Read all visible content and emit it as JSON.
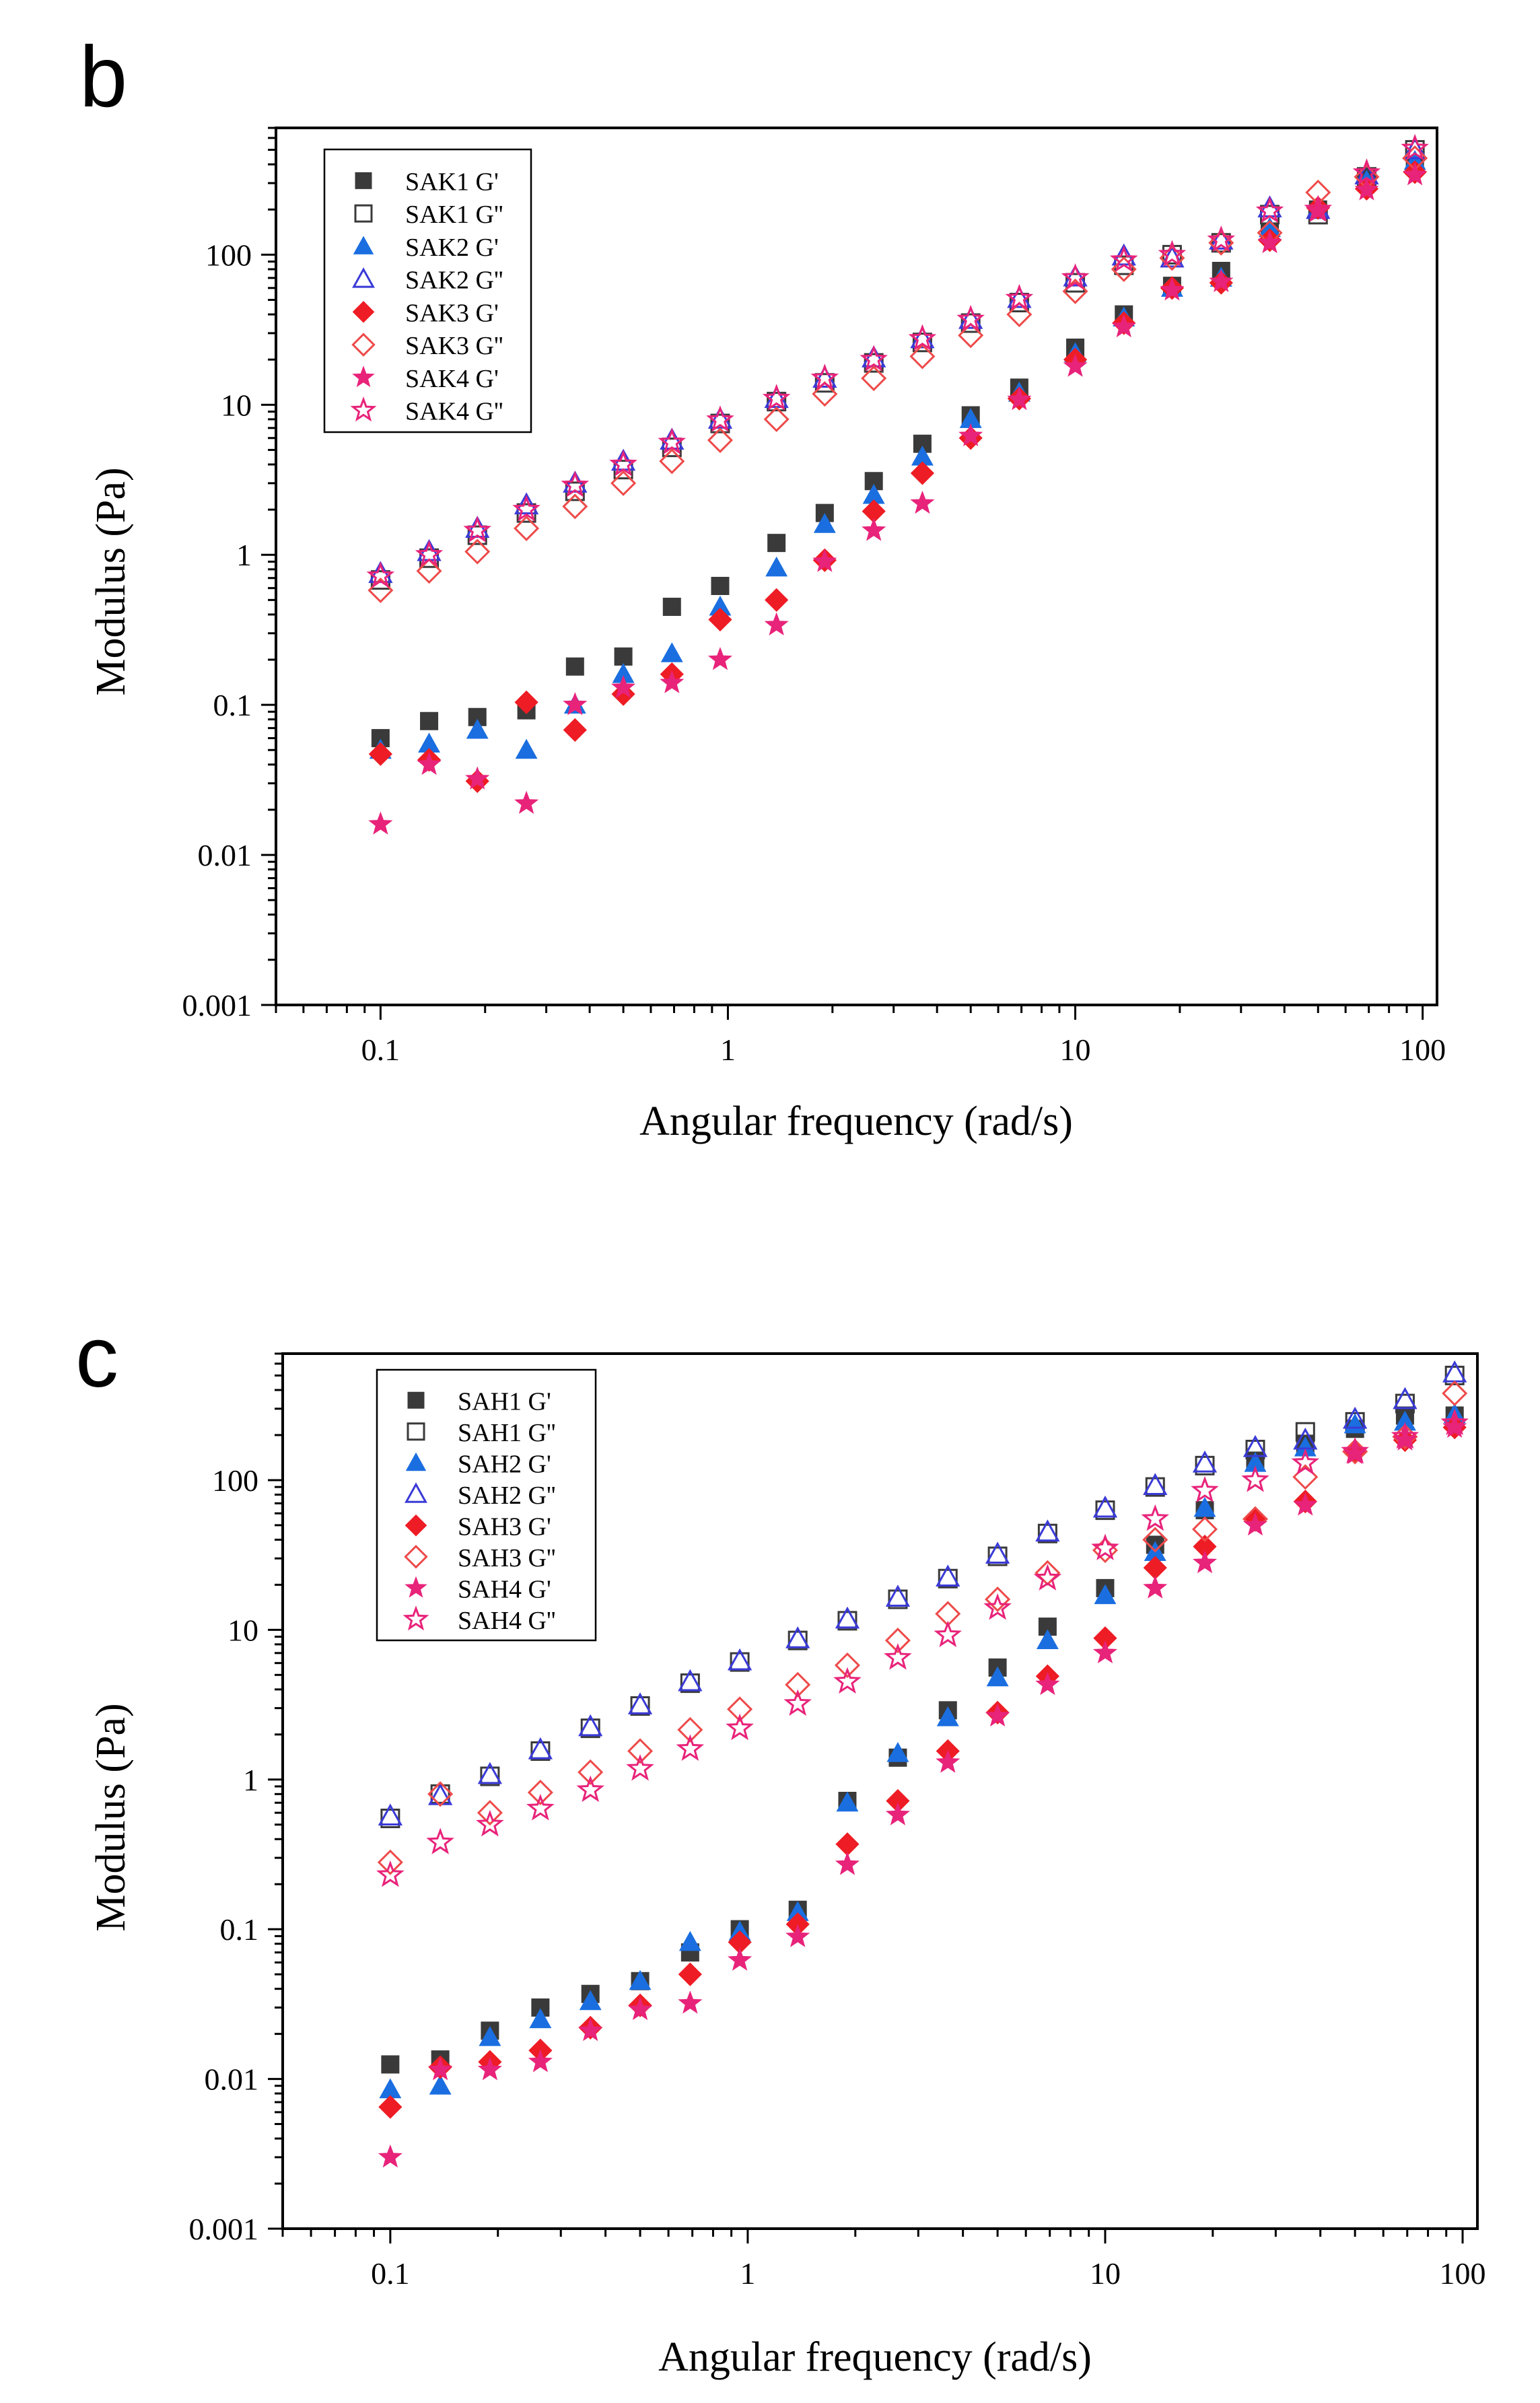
{
  "chart_data": [
    {
      "panel_label": "b",
      "type": "scatter",
      "xlabel": "Angular frequency (rad/s)",
      "ylabel": "Modulus (Pa)",
      "xscale": "log",
      "yscale": "log",
      "xlim": [
        0.05,
        110
      ],
      "ylim": [
        0.001,
        700
      ],
      "xticks": [
        0.1,
        1,
        10,
        100
      ],
      "xtick_labels": [
        "0.1",
        "1",
        "10",
        "100"
      ],
      "yticks": [
        0.001,
        0.01,
        0.1,
        1,
        10,
        100
      ],
      "ytick_labels": [
        "0.001",
        "0.01",
        "0.1",
        "1",
        "10",
        "100"
      ],
      "legend_position": "top-left",
      "x": [
        0.1,
        0.138,
        0.19,
        0.263,
        0.363,
        0.5,
        0.69,
        0.95,
        1.38,
        1.9,
        2.63,
        3.63,
        5,
        6.9,
        10,
        13.8,
        19,
        26.3,
        36.3,
        50,
        69,
        95
      ],
      "series": [
        {
          "name": "SAK1 G'",
          "marker": "square",
          "filled": true,
          "color": "#3a3a3a",
          "values": [
            0.06,
            0.078,
            0.083,
            0.092,
            0.18,
            0.21,
            0.45,
            0.62,
            1.2,
            1.9,
            3.1,
            5.5,
            8.5,
            13,
            24,
            40,
            62,
            78,
            140,
            200,
            330,
            390
          ]
        },
        {
          "name": "SAK1 G''",
          "marker": "square",
          "filled": false,
          "color": "#3a3a3a",
          "values": [
            0.68,
            0.95,
            1.35,
            1.9,
            2.65,
            3.7,
            5.2,
            7.5,
            10.5,
            14,
            19,
            26,
            35,
            48,
            65,
            85,
            100,
            120,
            185,
            185,
            330,
            500
          ]
        },
        {
          "name": "SAK2 G'",
          "marker": "triangle",
          "filled": true,
          "color": "#1a6ee0",
          "values": [
            0.05,
            0.055,
            0.068,
            0.05,
            0.1,
            0.16,
            0.22,
            0.45,
            0.82,
            1.6,
            2.5,
            4.5,
            8,
            12,
            22,
            38,
            60,
            70,
            150,
            205,
            310,
            420
          ]
        },
        {
          "name": "SAK2 G''",
          "marker": "triangle",
          "filled": false,
          "color": "#3a3ad8",
          "values": [
            0.75,
            1.05,
            1.5,
            2.15,
            3.0,
            4.2,
            5.8,
            8,
            11,
            15,
            20.5,
            27.5,
            37,
            51,
            71,
            98,
            95,
            125,
            205,
            200,
            340,
            500
          ]
        },
        {
          "name": "SAK3 G'",
          "marker": "diamond",
          "filled": true,
          "color": "#ee1c24",
          "values": [
            0.047,
            0.043,
            0.031,
            0.104,
            0.068,
            0.118,
            0.16,
            0.37,
            0.5,
            0.92,
            1.95,
            3.5,
            6,
            11,
            20,
            35,
            60,
            65,
            125,
            205,
            275,
            355
          ]
        },
        {
          "name": "SAK3 G''",
          "marker": "diamond",
          "filled": false,
          "color": "#ee4a4a",
          "values": [
            0.58,
            0.78,
            1.05,
            1.5,
            2.1,
            3.0,
            4.2,
            5.8,
            8,
            11.8,
            15,
            21,
            29,
            40,
            57,
            80,
            95,
            120,
            140,
            260,
            330,
            440
          ]
        },
        {
          "name": "SAK4 G'",
          "marker": "star",
          "filled": true,
          "color": "#e8237a",
          "values": [
            0.016,
            0.04,
            0.032,
            0.022,
            0.1,
            0.13,
            0.14,
            0.2,
            0.34,
            0.9,
            1.45,
            2.2,
            6.2,
            10.8,
            18,
            33,
            58,
            66,
            120,
            195,
            270,
            340
          ]
        },
        {
          "name": "SAK4 G''",
          "marker": "star",
          "filled": false,
          "color": "#e8237a",
          "values": [
            0.72,
            1.0,
            1.45,
            2.0,
            2.9,
            4.0,
            5.6,
            7.9,
            11,
            15,
            20,
            27.5,
            37,
            51,
            70,
            92,
            100,
            125,
            195,
            200,
            350,
            510
          ]
        }
      ]
    },
    {
      "panel_label": "c",
      "type": "scatter",
      "xlabel": "Angular frequency (rad/s)",
      "ylabel": "Modulus (Pa)",
      "xscale": "log",
      "yscale": "log",
      "xlim": [
        0.05,
        110
      ],
      "ylim": [
        0.001,
        700
      ],
      "xticks": [
        0.1,
        1,
        10,
        100
      ],
      "xtick_labels": [
        "0.1",
        "1",
        "10",
        "100"
      ],
      "yticks": [
        0.001,
        0.01,
        0.1,
        1,
        10,
        100
      ],
      "ytick_labels": [
        "0.001",
        "0.01",
        "0.1",
        "1",
        "10",
        "100"
      ],
      "legend_position": "top-left",
      "x": [
        0.1,
        0.138,
        0.19,
        0.263,
        0.363,
        0.5,
        0.69,
        0.95,
        1.38,
        1.9,
        2.63,
        3.63,
        5,
        6.9,
        10,
        13.8,
        19,
        26.3,
        36.3,
        50,
        69,
        95
      ],
      "series": [
        {
          "name": "SAH1 G'",
          "marker": "square",
          "filled": true,
          "color": "#3a3a3a",
          "values": [
            0.0125,
            0.0135,
            0.021,
            0.03,
            0.037,
            0.045,
            0.07,
            0.1,
            0.135,
            0.72,
            1.4,
            2.9,
            5.6,
            10.5,
            19,
            37,
            63,
            135,
            175,
            220,
            270,
            270
          ]
        },
        {
          "name": "SAH1 G''",
          "marker": "square",
          "filled": false,
          "color": "#3a3a3a",
          "values": [
            0.55,
            0.8,
            1.05,
            1.55,
            2.2,
            3.1,
            4.4,
            6.1,
            8.5,
            11.5,
            16,
            22,
            31,
            44,
            63,
            90,
            125,
            160,
            210,
            245,
            325,
            500
          ]
        },
        {
          "name": "SAH2 G'",
          "marker": "triangle",
          "filled": true,
          "color": "#1a6ee0",
          "values": [
            0.0085,
            0.009,
            0.019,
            0.025,
            0.033,
            0.045,
            0.082,
            0.096,
            0.13,
            0.7,
            1.5,
            2.6,
            4.8,
            8.5,
            17,
            33,
            65,
            130,
            165,
            235,
            245,
            275
          ]
        },
        {
          "name": "SAH2 G''",
          "marker": "triangle",
          "filled": false,
          "color": "#3a3ad8",
          "values": [
            0.57,
            0.78,
            1.08,
            1.58,
            2.25,
            3.15,
            4.5,
            6.2,
            8.7,
            11.8,
            16.5,
            22.5,
            32,
            45,
            65,
            92,
            130,
            165,
            185,
            255,
            345,
            520
          ]
        },
        {
          "name": "SAH3 G'",
          "marker": "diamond",
          "filled": true,
          "color": "#ee1c24",
          "values": [
            0.0065,
            0.012,
            0.013,
            0.0155,
            0.022,
            0.031,
            0.05,
            0.082,
            0.108,
            0.37,
            0.72,
            1.55,
            2.8,
            4.9,
            8.8,
            26,
            36,
            55,
            72,
            155,
            185,
            225
          ]
        },
        {
          "name": "SAH3 G''",
          "marker": "diamond",
          "filled": false,
          "color": "#ee4a4a",
          "values": [
            0.28,
            0.8,
            0.6,
            0.82,
            1.12,
            1.55,
            2.15,
            2.95,
            4.3,
            5.8,
            8.5,
            12.8,
            16,
            24,
            34,
            40,
            47,
            55,
            105,
            155,
            195,
            380
          ]
        },
        {
          "name": "SAH4 G'",
          "marker": "star",
          "filled": true,
          "color": "#e8237a",
          "values": [
            0.003,
            0.0115,
            0.0115,
            0.013,
            0.021,
            0.029,
            0.032,
            0.062,
            0.089,
            0.27,
            0.58,
            1.3,
            2.65,
            4.3,
            7,
            19,
            28,
            50,
            68,
            150,
            185,
            225
          ]
        },
        {
          "name": "SAH4 G''",
          "marker": "star",
          "filled": false,
          "color": "#e8237a",
          "values": [
            0.23,
            0.38,
            0.5,
            0.64,
            0.85,
            1.18,
            1.6,
            2.2,
            3.2,
            4.5,
            6.5,
            9.2,
            14,
            22,
            35,
            55,
            85,
            100,
            130,
            155,
            195,
            240
          ]
        }
      ]
    }
  ]
}
